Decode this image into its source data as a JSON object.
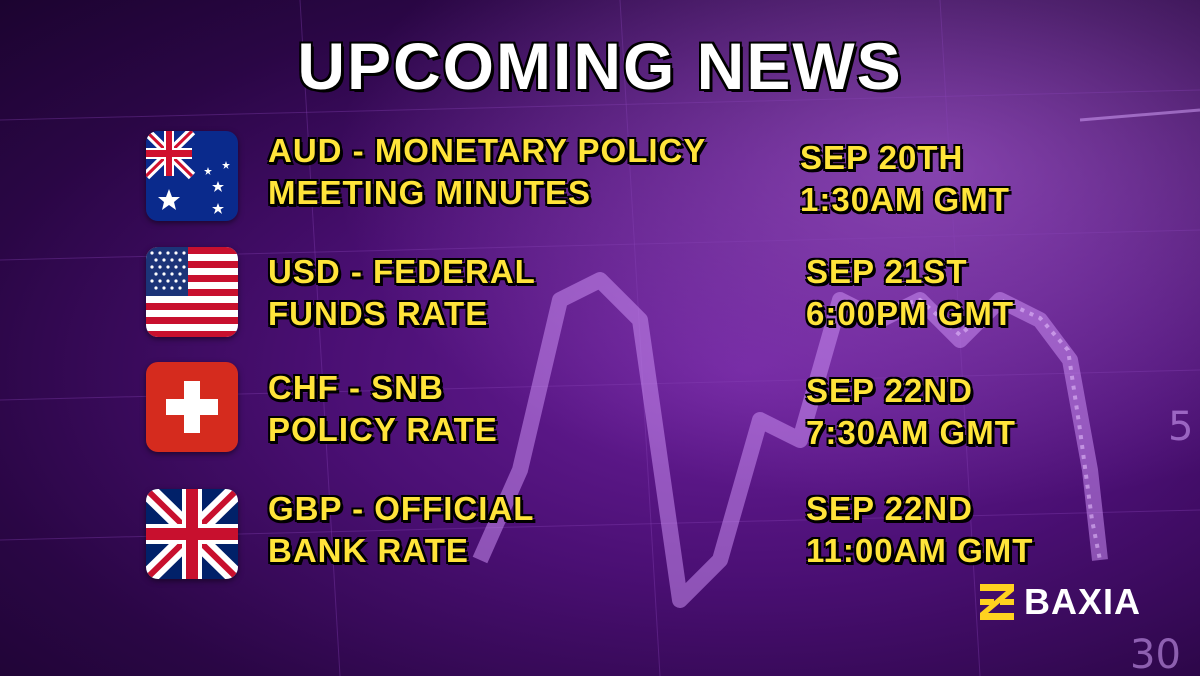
{
  "title": "UPCOMING NEWS",
  "events": [
    {
      "flag": "australia-flag",
      "name_line1": "AUD - MONETARY POLICY",
      "name_line2": "MEETING MINUTES",
      "date": "SEP 20TH",
      "time": "1:30AM GMT"
    },
    {
      "flag": "usa-flag",
      "name_line1": "USD - FEDERAL",
      "name_line2": "FUNDS RATE",
      "date": "SEP 21ST",
      "time": "6:00PM GMT"
    },
    {
      "flag": "switzerland-flag",
      "name_line1": "CHF - SNB",
      "name_line2": "POLICY RATE",
      "date": "SEP 22ND",
      "time": "7:30AM GMT"
    },
    {
      "flag": "uk-flag",
      "name_line1": "GBP - OFFICIAL",
      "name_line2": "BANK RATE",
      "date": "SEP 22ND",
      "time": "11:00AM GMT"
    }
  ],
  "brand": {
    "name": "BAXIA",
    "logo_icon": "baxia-logo-icon",
    "accent": "#ffd21f"
  },
  "colors": {
    "title": "#ffffff",
    "text": "#ffe43a",
    "background": "#4a0f73"
  }
}
